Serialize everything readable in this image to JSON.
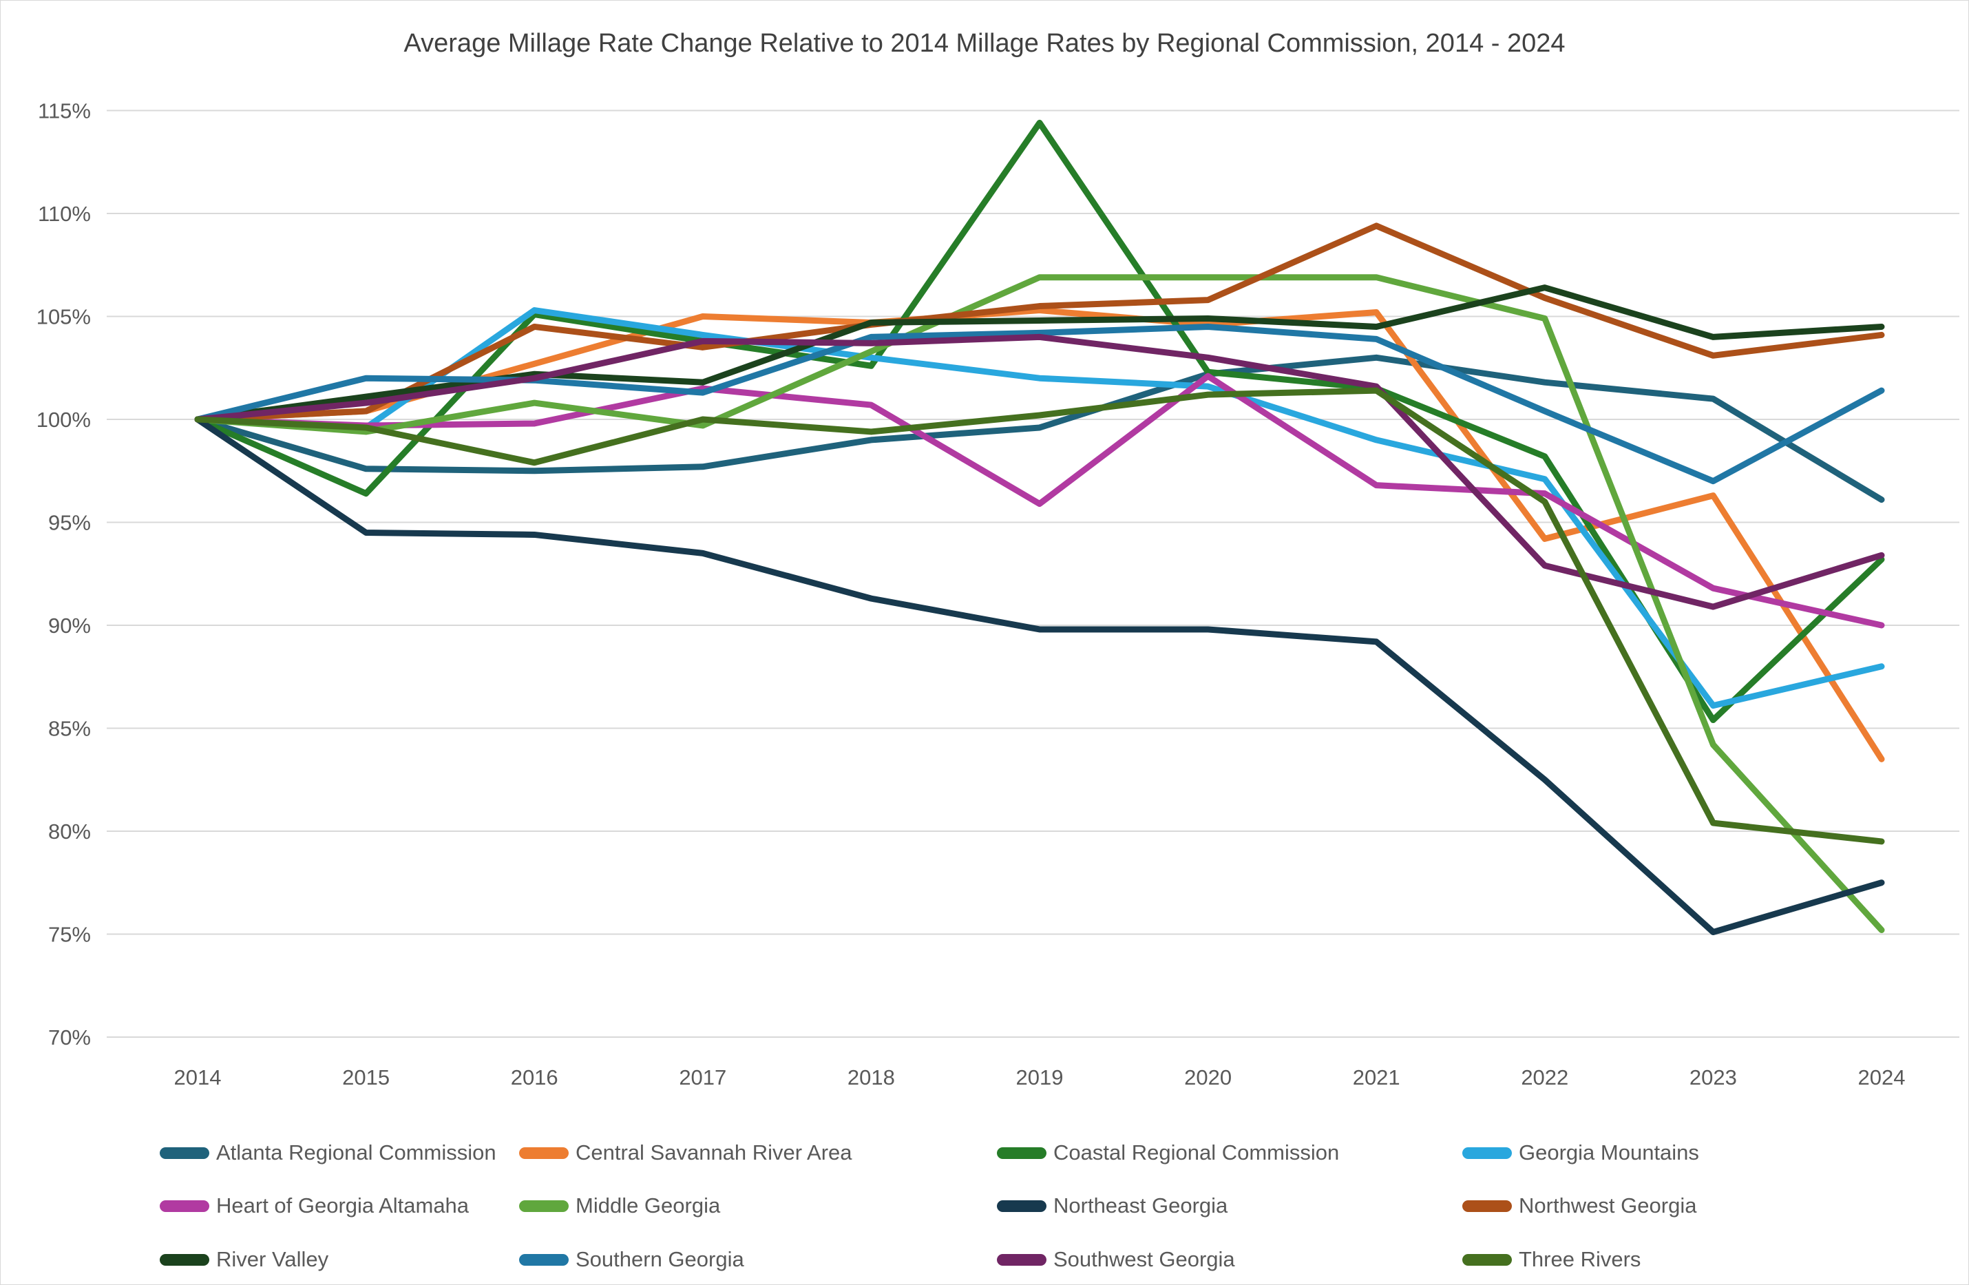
{
  "page": {
    "background_color": "#ffffff",
    "border_color": "#d9d9d9"
  },
  "chart_data": {
    "type": "line",
    "title": "Average Millage Rate Change Relative to 2014 Millage Rates by Regional Commission, 2014 - 2024",
    "title_color": "#404040",
    "axis_label_color": "#595959",
    "gridline_color": "#d9d9d9",
    "grid": "horizontal",
    "legend_position": "bottom",
    "x_label": "",
    "y_label": "",
    "x_tick_labels": [
      "2014",
      "2015",
      "2016",
      "2017",
      "2018",
      "2019",
      "2020",
      "2021",
      "2022",
      "2023",
      "2024"
    ],
    "y_axis": {
      "min": 70,
      "max": 115,
      "step": 5,
      "unit": "%",
      "tick_labels": [
        "70%",
        "75%",
        "80%",
        "85%",
        "90%",
        "95%",
        "100%",
        "105%",
        "110%",
        "115%"
      ]
    },
    "x": [
      2014,
      2015,
      2016,
      2017,
      2018,
      2019,
      2020,
      2021,
      2022,
      2023,
      2024
    ],
    "series": [
      {
        "name": "Atlanta Regional Commission",
        "color": "#1F627B",
        "values": [
          100,
          97.6,
          97.5,
          97.7,
          99.0,
          99.6,
          102.2,
          103.0,
          101.8,
          101.0,
          96.1
        ]
      },
      {
        "name": "Central Savannah River Area",
        "color": "#ED7D31",
        "values": [
          100,
          100.4,
          102.7,
          105.0,
          104.7,
          105.3,
          104.6,
          105.2,
          94.2,
          96.3,
          83.5
        ]
      },
      {
        "name": "Coastal Regional Commission",
        "color": "#267D28",
        "values": [
          100,
          96.4,
          105.1,
          103.8,
          102.6,
          114.4,
          102.3,
          101.5,
          98.2,
          85.4,
          93.2
        ]
      },
      {
        "name": "Georgia Mountains",
        "color": "#29A7DE",
        "values": [
          100,
          99.6,
          105.3,
          104.1,
          103.0,
          102.0,
          101.6,
          99.0,
          97.1,
          86.1,
          88.0
        ]
      },
      {
        "name": "Heart of Georgia Altamaha",
        "color": "#B13AA1",
        "values": [
          100,
          99.7,
          99.8,
          101.5,
          100.7,
          95.9,
          102.1,
          96.8,
          96.4,
          91.8,
          90.0
        ]
      },
      {
        "name": "Middle Georgia",
        "color": "#60A73D",
        "values": [
          100,
          99.4,
          100.8,
          99.7,
          103.3,
          106.9,
          106.9,
          106.9,
          104.9,
          84.2,
          75.2
        ]
      },
      {
        "name": "Northeast Georgia",
        "color": "#17394E",
        "values": [
          100,
          94.5,
          94.4,
          93.5,
          91.3,
          89.8,
          89.8,
          89.2,
          82.5,
          75.1,
          77.5
        ]
      },
      {
        "name": "Northwest Georgia",
        "color": "#AC5019",
        "values": [
          100,
          100.4,
          104.5,
          103.5,
          104.6,
          105.5,
          105.8,
          109.4,
          105.9,
          103.1,
          104.1
        ]
      },
      {
        "name": "River Valley",
        "color": "#1B421D",
        "values": [
          100,
          101.1,
          102.2,
          101.8,
          104.7,
          104.8,
          104.9,
          104.5,
          106.4,
          104.0,
          104.5
        ]
      },
      {
        "name": "Southern Georgia",
        "color": "#2077A5",
        "values": [
          100,
          102.0,
          101.9,
          101.3,
          104.0,
          104.2,
          104.5,
          103.9,
          100.4,
          97.0,
          101.4
        ]
      },
      {
        "name": "Southwest Georgia",
        "color": "#702564",
        "values": [
          100,
          100.8,
          102.0,
          103.8,
          103.7,
          104.0,
          103.0,
          101.6,
          92.9,
          90.9,
          93.4
        ]
      },
      {
        "name": "Three Rivers",
        "color": "#45701F",
        "values": [
          100,
          99.6,
          97.9,
          100.0,
          99.4,
          100.2,
          101.2,
          101.4,
          96.0,
          80.4,
          79.5
        ]
      }
    ]
  }
}
